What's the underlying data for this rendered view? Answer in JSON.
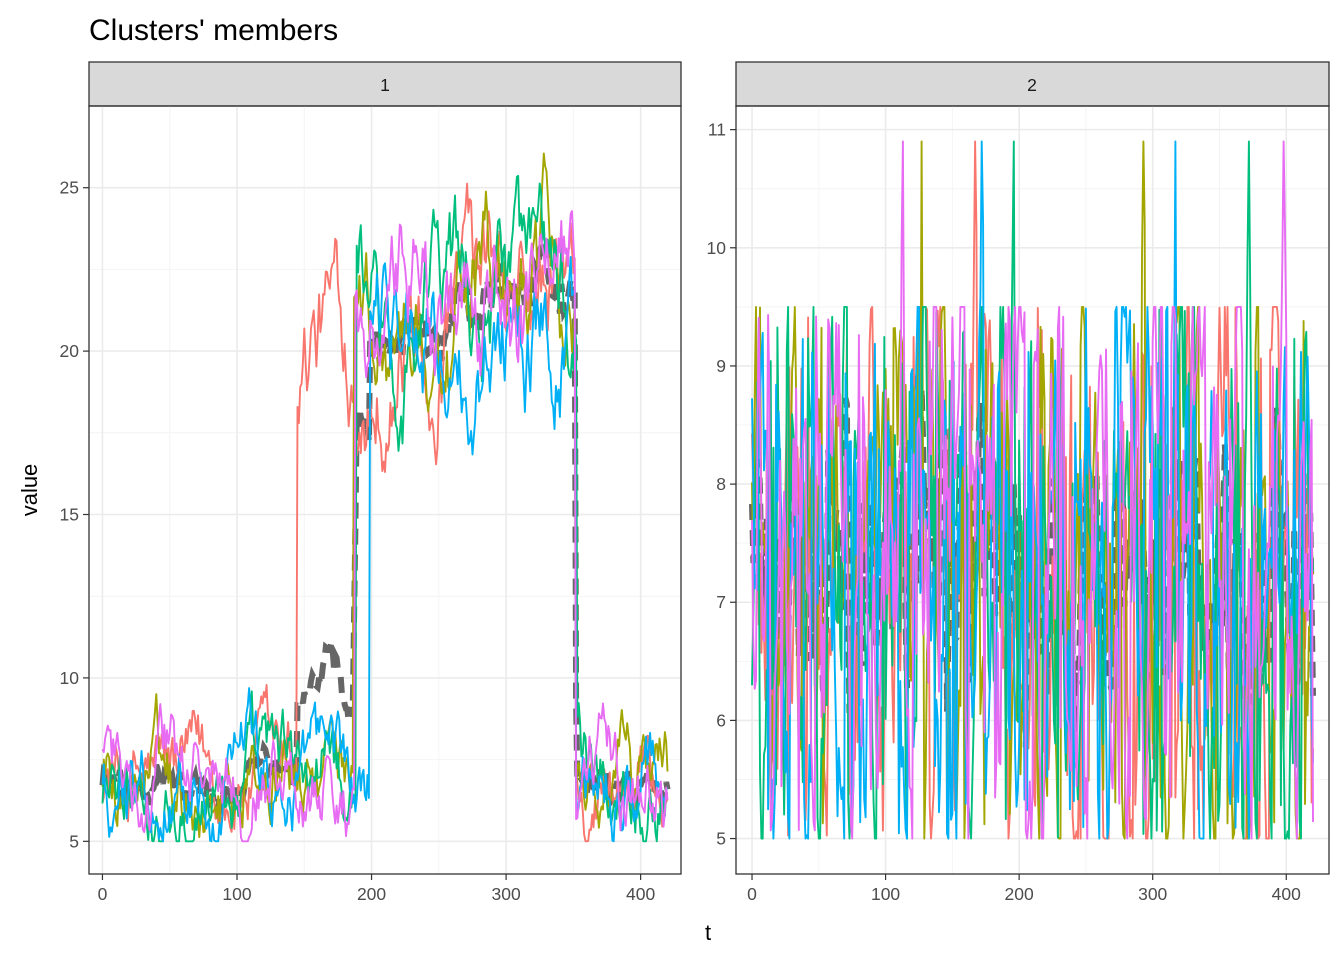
{
  "title": "Clusters' members",
  "xlabel": "t",
  "ylabel": "value",
  "colors": {
    "series": [
      "#F8766D",
      "#A3A500",
      "#00BF7D",
      "#00B0F6",
      "#E76BF3"
    ],
    "centroid": "#666666",
    "grid_major": "#ebebeb",
    "grid_minor": "#f4f4f4",
    "strip_fill": "#d9d9d9",
    "border": "#333333"
  },
  "chart_data": [
    {
      "type": "line",
      "panel": "1",
      "xlim": [
        -10,
        430
      ],
      "ylim": [
        4,
        27.5
      ],
      "x_ticks": [
        0,
        100,
        200,
        300,
        400
      ],
      "x_tick_labels": [
        "0",
        "100",
        "200",
        "300",
        "400"
      ],
      "y_ticks": [
        5,
        10,
        15,
        20,
        25
      ],
      "y_tick_labels": [
        "5",
        "10",
        "15",
        "20",
        "25"
      ],
      "grid": true,
      "segments_note_free": true,
      "pattern": {
        "t_end": 420,
        "low_range": [
          5.0,
          10.2
        ],
        "high_range": [
          16.3,
          26.4
        ],
        "rise_t": 187,
        "fall_t": 352,
        "early_rise_series_t": 145,
        "late_rise_series_t": 199
      },
      "centroid": {
        "style": "dashed",
        "low_mean": 6.8,
        "high_mean": 21.0
      }
    },
    {
      "type": "line",
      "panel": "2",
      "xlim": [
        -12,
        432
      ],
      "ylim": [
        4.7,
        11.2
      ],
      "x_ticks": [
        0,
        100,
        200,
        300,
        400
      ],
      "x_tick_labels": [
        "0",
        "100",
        "200",
        "300",
        "400"
      ],
      "y_ticks": [
        5,
        6,
        7,
        8,
        9,
        10,
        11
      ],
      "y_tick_labels": [
        "5",
        "6",
        "7",
        "8",
        "9",
        "10",
        "11"
      ],
      "grid": true,
      "pattern": {
        "t_end": 420,
        "range": [
          5.0,
          9.5
        ],
        "spike_value": 10.9,
        "spikes": [
          {
            "t": 113,
            "series": 4
          },
          {
            "t": 127,
            "series": 1
          },
          {
            "t": 167,
            "series": 0
          },
          {
            "t": 172,
            "series": 3
          },
          {
            "t": 196,
            "series": 2
          },
          {
            "t": 293,
            "series": 1
          },
          {
            "t": 317,
            "series": 3
          },
          {
            "t": 372,
            "series": 2
          },
          {
            "t": 398,
            "series": 4
          }
        ]
      },
      "centroid": {
        "style": "dashed",
        "mean": 7.0
      }
    }
  ]
}
